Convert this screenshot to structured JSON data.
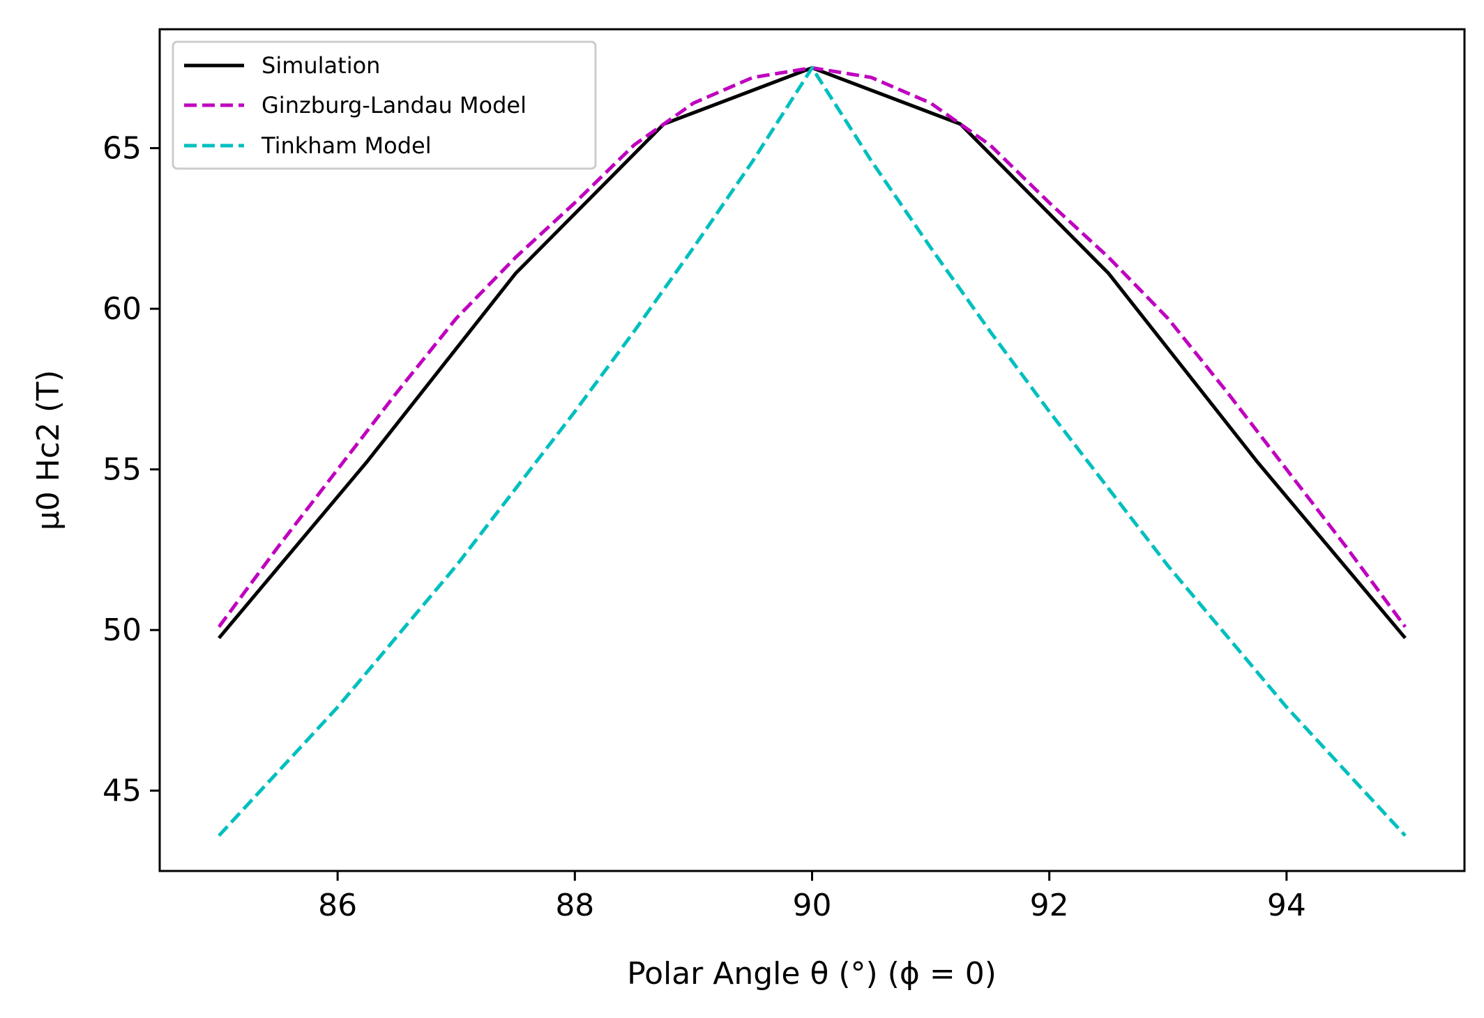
{
  "chart_data": {
    "type": "line",
    "title": "",
    "xlabel": "Polar Angle θ (°) (ϕ = 0)",
    "ylabel": "μ0 Hc2 (T)",
    "xlim": [
      84.5,
      95.5
    ],
    "ylim": [
      42.5,
      68.7
    ],
    "xticks": [
      86,
      88,
      90,
      92,
      94
    ],
    "yticks": [
      45,
      50,
      55,
      60,
      65
    ],
    "grid": false,
    "legend_position": "top-left",
    "series": [
      {
        "name": "Simulation",
        "color": "#000000",
        "style": "solid",
        "x": [
          85,
          86.25,
          87.5,
          88.75,
          90,
          91.25,
          92.5,
          93.75,
          95
        ],
        "y": [
          49.75,
          55.25,
          61.1,
          65.75,
          67.5,
          65.75,
          61.1,
          55.25,
          49.75
        ]
      },
      {
        "name": "Ginzburg-Landau Model",
        "color": "#bf00bf",
        "style": "dashed",
        "x": [
          85,
          85.5,
          86,
          86.5,
          87,
          87.5,
          88,
          88.5,
          89,
          89.5,
          90,
          90.5,
          91,
          91.5,
          92,
          92.5,
          93,
          93.5,
          94,
          94.5,
          95
        ],
        "y": [
          50.1,
          52.6,
          55.0,
          57.4,
          59.7,
          61.6,
          63.3,
          65.1,
          66.4,
          67.2,
          67.5,
          67.2,
          66.4,
          65.1,
          63.3,
          61.6,
          59.7,
          57.4,
          55.0,
          52.6,
          50.1
        ]
      },
      {
        "name": "Tinkham Model",
        "color": "#00bfbf",
        "style": "dashed",
        "x": [
          85,
          85.5,
          86,
          86.5,
          87,
          87.5,
          88,
          88.5,
          89,
          89.5,
          90,
          90.5,
          91,
          91.5,
          92,
          92.5,
          93,
          93.5,
          94,
          94.5,
          95
        ],
        "y": [
          43.6,
          45.6,
          47.6,
          49.8,
          52.0,
          54.4,
          56.8,
          59.3,
          61.9,
          64.6,
          67.5,
          64.6,
          61.9,
          59.3,
          56.8,
          54.4,
          52.0,
          49.8,
          47.6,
          45.6,
          43.6
        ]
      }
    ]
  }
}
